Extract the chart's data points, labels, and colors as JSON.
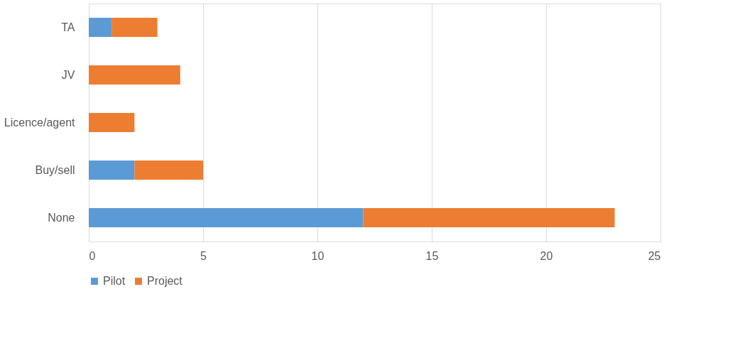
{
  "chart_data": {
    "type": "bar",
    "orientation": "horizontal",
    "stacked": true,
    "categories": [
      "TA",
      "JV",
      "Licence/agent",
      "Buy/sell",
      "None"
    ],
    "series": [
      {
        "name": "Pilot",
        "color": "#5b9bd5",
        "values": [
          1,
          0,
          0,
          2,
          12
        ]
      },
      {
        "name": "Project",
        "color": "#ed7d31",
        "values": [
          2,
          4,
          2,
          3,
          11
        ]
      }
    ],
    "xlim": [
      0,
      25
    ],
    "xticks": [
      0,
      5,
      10,
      15,
      20,
      25
    ],
    "grid": "x",
    "legend": "bottom"
  }
}
